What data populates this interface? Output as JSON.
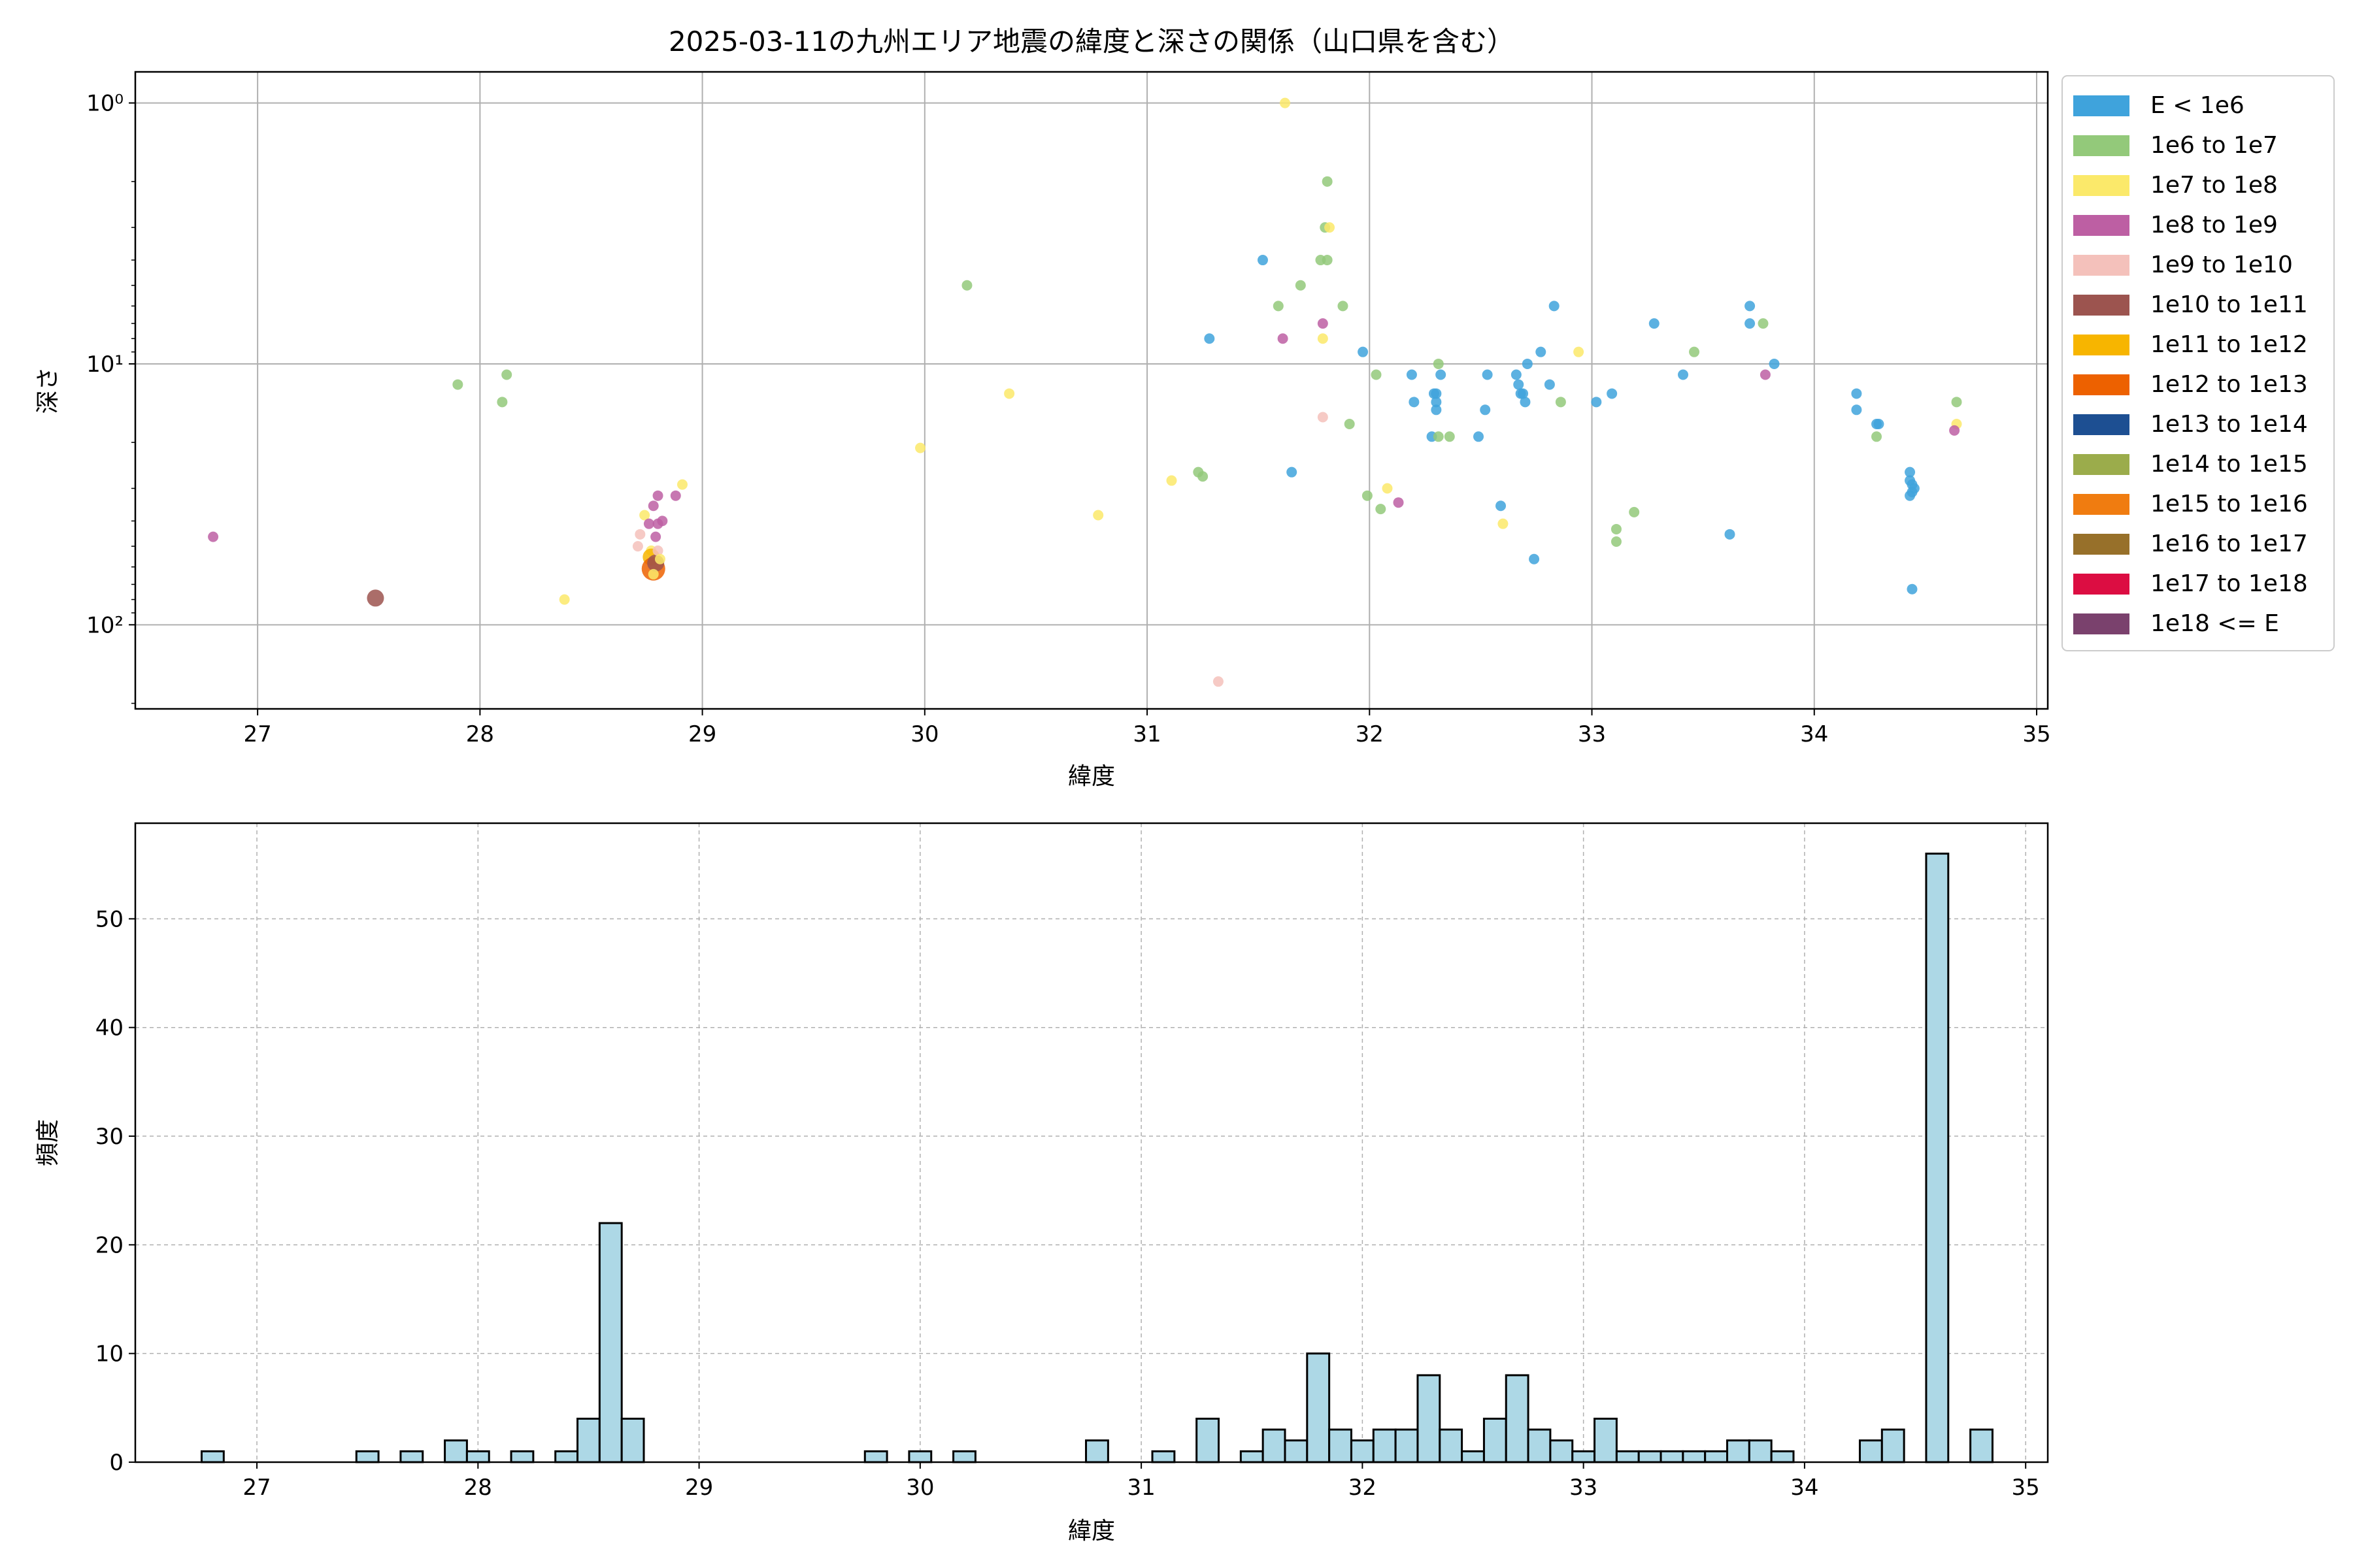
{
  "chart_data": [
    {
      "type": "scatter",
      "title": "2025-03-11の九州エリア地震の緯度と深さの関係（山口県を含む）",
      "xlabel": "緯度",
      "ylabel": "深さ",
      "xlim": [
        26.45,
        35.05
      ],
      "ylim": [
        210,
        0.76
      ],
      "yscale": "log",
      "yaxis_inverted": true,
      "xticks": [
        "27",
        "28",
        "29",
        "30",
        "31",
        "32",
        "33",
        "34",
        "35"
      ],
      "xtick_values": [
        27,
        28,
        29,
        30,
        31,
        32,
        33,
        34,
        35
      ],
      "yticks": [
        "10⁰",
        "10¹",
        "10²"
      ],
      "ytick_values": [
        1,
        10,
        100
      ],
      "grid": true,
      "legend_position": "outside-right-top",
      "legend": [
        {
          "label": "E < 1e6",
          "color": "#3fa3dc"
        },
        {
          "label": "1e6 to 1e7",
          "color": "#93c97a"
        },
        {
          "label": "1e7 to 1e8",
          "color": "#fbe96a"
        },
        {
          "label": "1e8 to 1e9",
          "color": "#bd5fa3"
        },
        {
          "label": "1e9 to 1e10",
          "color": "#f4c1bb"
        },
        {
          "label": "1e10 to 1e11",
          "color": "#9c544f"
        },
        {
          "label": "1e11 to 1e12",
          "color": "#f7b500"
        },
        {
          "label": "1e12 to 1e13",
          "color": "#ed6100"
        },
        {
          "label": "1e13 to 1e14",
          "color": "#1d4f92"
        },
        {
          "label": "1e14 to 1e15",
          "color": "#9bac4b"
        },
        {
          "label": "1e15 to 1e16",
          "color": "#f07c10"
        },
        {
          "label": "1e16 to 1e17",
          "color": "#97702a"
        },
        {
          "label": "1e17 to 1e18",
          "color": "#dc0d42"
        },
        {
          "label": "1e18 <= E",
          "color": "#7a416d"
        }
      ],
      "points": [
        [
          26.8,
          46,
          3,
          1
        ],
        [
          27.53,
          79,
          5,
          2
        ],
        [
          27.9,
          12,
          1,
          1
        ],
        [
          28.1,
          14,
          1,
          1
        ],
        [
          28.12,
          11,
          1,
          1
        ],
        [
          28.38,
          80,
          2,
          1
        ],
        [
          28.72,
          45,
          4,
          1
        ],
        [
          28.71,
          50,
          4,
          1
        ],
        [
          28.74,
          38,
          2,
          1
        ],
        [
          28.76,
          41,
          3,
          1
        ],
        [
          28.78,
          35,
          3,
          1
        ],
        [
          28.8,
          32,
          3,
          1
        ],
        [
          28.82,
          40,
          3,
          1
        ],
        [
          28.8,
          41,
          3,
          1
        ],
        [
          28.79,
          46,
          3,
          1
        ],
        [
          28.77,
          52,
          2,
          1
        ],
        [
          28.77,
          55,
          6,
          2
        ],
        [
          28.78,
          61,
          7,
          3
        ],
        [
          28.79,
          58,
          5,
          2
        ],
        [
          28.78,
          64,
          2,
          1
        ],
        [
          28.8,
          52,
          4,
          1
        ],
        [
          28.81,
          56,
          2,
          1
        ],
        [
          28.88,
          32,
          3,
          1
        ],
        [
          28.91,
          29,
          2,
          1
        ],
        [
          29.98,
          21,
          2,
          1
        ],
        [
          30.19,
          5,
          1,
          1
        ],
        [
          30.38,
          13,
          2,
          1
        ],
        [
          30.78,
          38,
          2,
          1
        ],
        [
          31.11,
          28,
          2,
          1
        ],
        [
          31.23,
          26,
          1,
          1
        ],
        [
          31.25,
          27,
          1,
          1
        ],
        [
          31.28,
          8,
          0,
          1
        ],
        [
          31.32,
          165,
          4,
          1
        ],
        [
          31.52,
          4,
          0,
          1
        ],
        [
          31.59,
          6,
          1,
          1
        ],
        [
          31.61,
          8,
          3,
          1
        ],
        [
          31.62,
          1,
          2,
          1
        ],
        [
          31.65,
          26,
          0,
          1
        ],
        [
          31.69,
          5,
          1,
          1
        ],
        [
          31.78,
          4,
          1,
          1
        ],
        [
          31.79,
          7,
          3,
          1
        ],
        [
          31.79,
          8,
          2,
          1
        ],
        [
          31.8,
          3,
          1,
          1
        ],
        [
          31.81,
          4,
          1,
          1
        ],
        [
          31.82,
          3,
          2,
          1
        ],
        [
          31.79,
          16,
          4,
          1
        ],
        [
          31.81,
          2,
          1,
          1
        ],
        [
          31.88,
          6,
          1,
          1
        ],
        [
          31.91,
          17,
          1,
          1
        ],
        [
          31.97,
          9,
          0,
          1
        ],
        [
          31.99,
          32,
          1,
          1
        ],
        [
          32.03,
          11,
          1,
          1
        ],
        [
          32.05,
          36,
          1,
          1
        ],
        [
          32.08,
          30,
          2,
          1
        ],
        [
          32.13,
          34,
          3,
          1
        ],
        [
          32.19,
          11,
          0,
          1
        ],
        [
          32.2,
          14,
          0,
          1
        ],
        [
          32.28,
          19,
          0,
          1
        ],
        [
          32.29,
          13,
          0,
          1
        ],
        [
          32.3,
          15,
          0,
          1
        ],
        [
          32.3,
          14,
          0,
          1
        ],
        [
          32.3,
          13,
          0,
          1
        ],
        [
          32.31,
          10,
          1,
          1
        ],
        [
          32.32,
          11,
          0,
          1
        ],
        [
          32.31,
          19,
          1,
          1
        ],
        [
          32.36,
          19,
          1,
          1
        ],
        [
          32.49,
          19,
          0,
          1
        ],
        [
          32.52,
          15,
          0,
          1
        ],
        [
          32.53,
          11,
          0,
          1
        ],
        [
          32.59,
          35,
          0,
          1
        ],
        [
          32.6,
          41,
          2,
          1
        ],
        [
          32.66,
          11,
          0,
          1
        ],
        [
          32.67,
          12,
          0,
          1
        ],
        [
          32.68,
          13,
          0,
          1
        ],
        [
          32.69,
          13,
          0,
          1
        ],
        [
          32.7,
          14,
          0,
          1
        ],
        [
          32.71,
          10,
          0,
          1
        ],
        [
          32.74,
          56,
          0,
          1
        ],
        [
          32.77,
          9,
          0,
          1
        ],
        [
          32.81,
          12,
          0,
          1
        ],
        [
          32.83,
          6,
          0,
          1
        ],
        [
          32.86,
          14,
          1,
          1
        ],
        [
          32.94,
          9,
          2,
          1
        ],
        [
          33.02,
          14,
          0,
          1
        ],
        [
          33.09,
          13,
          0,
          1
        ],
        [
          33.11,
          48,
          1,
          1
        ],
        [
          33.11,
          43,
          1,
          1
        ],
        [
          33.19,
          37,
          1,
          1
        ],
        [
          33.28,
          7,
          0,
          1
        ],
        [
          33.41,
          11,
          0,
          1
        ],
        [
          33.46,
          9,
          1,
          1
        ],
        [
          33.62,
          45,
          0,
          1
        ],
        [
          33.71,
          6,
          0,
          1
        ],
        [
          33.71,
          7,
          0,
          1
        ],
        [
          33.77,
          7,
          1,
          1
        ],
        [
          33.78,
          11,
          3,
          1
        ],
        [
          33.82,
          10,
          0,
          1
        ],
        [
          34.19,
          13,
          0,
          1
        ],
        [
          34.19,
          15,
          0,
          1
        ],
        [
          34.28,
          17,
          0,
          1
        ],
        [
          34.29,
          17,
          0,
          1
        ],
        [
          34.28,
          19,
          1,
          1
        ],
        [
          34.43,
          26,
          0,
          1
        ],
        [
          34.43,
          28,
          0,
          1
        ],
        [
          34.44,
          29,
          0,
          1
        ],
        [
          34.44,
          31,
          0,
          1
        ],
        [
          34.43,
          32,
          0,
          1
        ],
        [
          34.45,
          30,
          0,
          1
        ],
        [
          34.44,
          73,
          0,
          1
        ],
        [
          34.64,
          14,
          1,
          1
        ],
        [
          34.64,
          17,
          2,
          1
        ],
        [
          34.63,
          18,
          3,
          1
        ]
      ]
    },
    {
      "type": "bar",
      "subtype": "histogram",
      "xlabel": "緯度",
      "ylabel": "頻度",
      "xlim": [
        26.45,
        35.1
      ],
      "ylim": [
        0,
        58.8
      ],
      "xticks": [
        "27",
        "28",
        "29",
        "30",
        "31",
        "32",
        "33",
        "34",
        "35"
      ],
      "xtick_values": [
        27,
        28,
        29,
        30,
        31,
        32,
        33,
        34,
        35
      ],
      "yticks": [
        "0",
        "10",
        "20",
        "30",
        "40",
        "50"
      ],
      "ytick_values": [
        0,
        10,
        20,
        30,
        40,
        50
      ],
      "grid": true,
      "bar_color": "#add8e6",
      "bin_start": 26.75,
      "bin_width": 0.1,
      "counts": [
        1,
        0,
        0,
        0,
        0,
        0,
        0,
        1,
        0,
        1,
        0,
        2,
        1,
        0,
        1,
        0,
        1,
        4,
        22,
        4,
        0,
        0,
        0,
        0,
        0,
        0,
        0,
        0,
        0,
        0,
        1,
        0,
        1,
        0,
        1,
        0,
        0,
        0,
        0,
        0,
        2,
        0,
        0,
        1,
        0,
        4,
        0,
        1,
        3,
        2,
        10,
        3,
        2,
        3,
        3,
        8,
        3,
        1,
        4,
        8,
        3,
        2,
        1,
        4,
        1,
        1,
        1,
        1,
        1,
        2,
        2,
        1,
        0,
        0,
        0,
        2,
        3,
        0,
        56,
        0,
        3
      ]
    }
  ]
}
